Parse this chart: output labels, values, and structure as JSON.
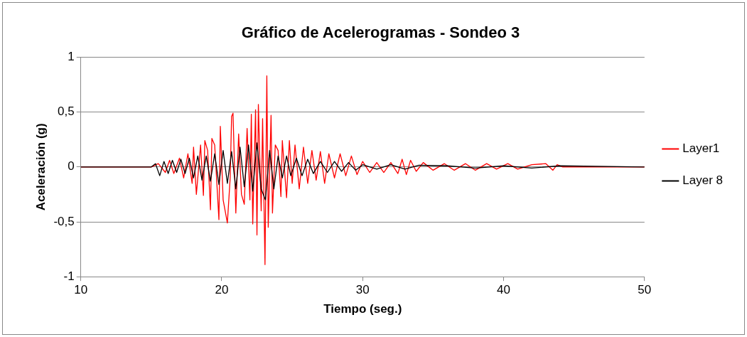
{
  "chart_data": {
    "type": "line",
    "title": "Gráfico de Acelerogramas - Sondeo 3",
    "xlabel": "Tiempo (seg.)",
    "ylabel": "Aceleración (g)",
    "xlim": [
      10,
      50
    ],
    "xticks": [
      10,
      20,
      30,
      40,
      50
    ],
    "ylim": [
      -1,
      1
    ],
    "yticks": [
      {
        "value": -1,
        "label": "-1"
      },
      {
        "value": -0.5,
        "label": "-0,5"
      },
      0,
      {
        "value": 0.5,
        "label": "0,5"
      },
      1
    ],
    "grid": "y",
    "legend": "right",
    "marker": "none",
    "line_style": "solid",
    "series": [
      {
        "name": "Layer1",
        "color": "#ff0000",
        "x": [
          10,
          15,
          15.5,
          16,
          16.3,
          16.6,
          17,
          17.3,
          17.6,
          17.9,
          18.0,
          18.2,
          18.5,
          18.7,
          18.8,
          19.0,
          19.2,
          19.3,
          19.5,
          19.8,
          19.9,
          20.1,
          20.4,
          20.6,
          20.7,
          20.8,
          21.0,
          21.2,
          21.4,
          21.6,
          21.8,
          22.0,
          22.1,
          22.2,
          22.4,
          22.5,
          22.6,
          22.8,
          22.9,
          23.07,
          23.2,
          23.3,
          23.5,
          23.6,
          23.8,
          24.0,
          24.2,
          24.3,
          24.6,
          24.8,
          25.0,
          25.2,
          25.5,
          25.8,
          26.1,
          26.4,
          26.7,
          27.0,
          27.3,
          27.6,
          28.0,
          28.4,
          28.8,
          29.2,
          29.6,
          30.0,
          30.5,
          31.0,
          31.5,
          32.0,
          32.5,
          32.8,
          33.1,
          33.4,
          33.8,
          34.3,
          35.0,
          35.8,
          36.5,
          37.3,
          38.0,
          38.8,
          39.5,
          40.3,
          41.0,
          42.0,
          43.0,
          43.5,
          43.8,
          44.2,
          50
        ],
        "values": [
          0,
          0,
          0.03,
          -0.05,
          0.06,
          -0.06,
          0.08,
          -0.1,
          0.12,
          -0.15,
          0.18,
          -0.25,
          0.2,
          -0.26,
          0.24,
          0.15,
          -0.39,
          0.26,
          0.2,
          -0.48,
          0.37,
          -0.3,
          -0.51,
          -0.1,
          0.46,
          0.49,
          -0.42,
          0.3,
          -0.25,
          -0.34,
          0.35,
          -0.3,
          0.48,
          -0.52,
          0.52,
          -0.62,
          0.57,
          -0.4,
          0.44,
          -0.89,
          0.83,
          -0.55,
          0.47,
          -0.42,
          0.2,
          0.15,
          -0.27,
          0.24,
          -0.28,
          0.24,
          -0.15,
          0.2,
          -0.2,
          0.18,
          -0.15,
          0.15,
          -0.12,
          0.14,
          -0.15,
          0.12,
          -0.1,
          0.12,
          -0.08,
          0.1,
          -0.07,
          0.05,
          -0.05,
          0.04,
          -0.05,
          0.04,
          -0.06,
          0.07,
          -0.07,
          0.06,
          -0.04,
          0.04,
          -0.03,
          0.03,
          -0.03,
          0.03,
          -0.03,
          0.03,
          -0.02,
          0.03,
          -0.02,
          0.02,
          0.03,
          -0.03,
          0.02,
          0,
          0
        ]
      },
      {
        "name": "Layer 8",
        "color": "#000000",
        "x": [
          10,
          15,
          15.3,
          15.6,
          15.9,
          16.2,
          16.5,
          16.8,
          17.1,
          17.4,
          17.7,
          18,
          18.3,
          18.6,
          18.9,
          19.2,
          19.5,
          19.8,
          20.1,
          20.4,
          20.7,
          21,
          21.3,
          21.6,
          21.9,
          22.2,
          22.5,
          22.8,
          23.1,
          23.4,
          23.7,
          24,
          24.3,
          24.6,
          24.9,
          25.3,
          25.7,
          26.1,
          26.5,
          27,
          27.5,
          28,
          28.5,
          29,
          29.5,
          30,
          31,
          32,
          33,
          34,
          36,
          38,
          40,
          42,
          44,
          50
        ],
        "values": [
          0,
          0,
          0.03,
          -0.08,
          0.05,
          -0.06,
          0.06,
          -0.05,
          0.07,
          -0.06,
          0.08,
          -0.1,
          0.1,
          -0.12,
          0.1,
          -0.13,
          0.12,
          -0.16,
          0.15,
          -0.15,
          0.14,
          -0.2,
          0.18,
          -0.18,
          0.2,
          -0.22,
          0.22,
          -0.2,
          -0.3,
          0.15,
          -0.2,
          0.1,
          -0.1,
          0.1,
          -0.08,
          0.08,
          -0.08,
          0.07,
          -0.06,
          0.05,
          -0.05,
          0.05,
          -0.04,
          0.04,
          -0.03,
          0.02,
          -0.02,
          0.02,
          -0.02,
          0.015,
          0.01,
          -0.01,
          0.01,
          -0.01,
          0.01,
          0
        ]
      }
    ]
  }
}
